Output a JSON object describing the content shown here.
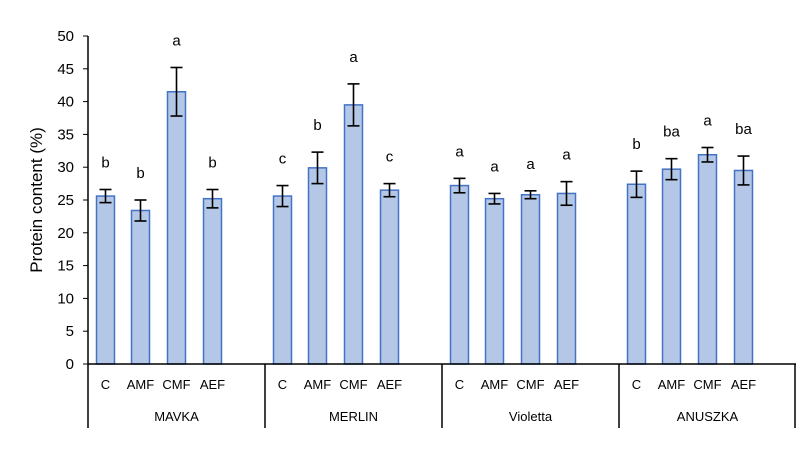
{
  "chart_data": {
    "type": "bar",
    "title": "",
    "xlabel": "",
    "ylabel": "Protein content (%)",
    "ylim": [
      0,
      50
    ],
    "yticks": [
      0,
      5,
      10,
      15,
      20,
      25,
      30,
      35,
      40,
      45,
      50
    ],
    "grid": false,
    "legend": "none",
    "colors": {
      "bar_fill": "#b4c7e7",
      "bar_stroke": "#4472c4",
      "error": "#000000",
      "axis": "#000000"
    },
    "groups": [
      {
        "name": "MAVKA",
        "bars": [
          {
            "category": "C",
            "value": 25.6,
            "error": 1.0,
            "letter": "b"
          },
          {
            "category": "AMF",
            "value": 23.4,
            "error": 1.6,
            "letter": "b"
          },
          {
            "category": "CMF",
            "value": 41.5,
            "error": 3.7,
            "letter": "a"
          },
          {
            "category": "AEF",
            "value": 25.2,
            "error": 1.4,
            "letter": "b"
          }
        ]
      },
      {
        "name": "MERLIN",
        "bars": [
          {
            "category": "C",
            "value": 25.6,
            "error": 1.6,
            "letter": "c"
          },
          {
            "category": "AMF",
            "value": 29.9,
            "error": 2.4,
            "letter": "b"
          },
          {
            "category": "CMF",
            "value": 39.5,
            "error": 3.2,
            "letter": "a"
          },
          {
            "category": "AEF",
            "value": 26.5,
            "error": 1.0,
            "letter": "c"
          }
        ]
      },
      {
        "name": "Violetta",
        "bars": [
          {
            "category": "C",
            "value": 27.2,
            "error": 1.1,
            "letter": "a"
          },
          {
            "category": "AMF",
            "value": 25.2,
            "error": 0.8,
            "letter": "a"
          },
          {
            "category": "CMF",
            "value": 25.8,
            "error": 0.6,
            "letter": "a"
          },
          {
            "category": "AEF",
            "value": 26.0,
            "error": 1.8,
            "letter": "a"
          }
        ]
      },
      {
        "name": "ANUSZKA",
        "bars": [
          {
            "category": "C",
            "value": 27.4,
            "error": 2.0,
            "letter": "b"
          },
          {
            "category": "AMF",
            "value": 29.7,
            "error": 1.6,
            "letter": "ba"
          },
          {
            "category": "CMF",
            "value": 31.9,
            "error": 1.1,
            "letter": "a"
          },
          {
            "category": "AEF",
            "value": 29.5,
            "error": 2.2,
            "letter": "ba"
          }
        ]
      }
    ]
  }
}
